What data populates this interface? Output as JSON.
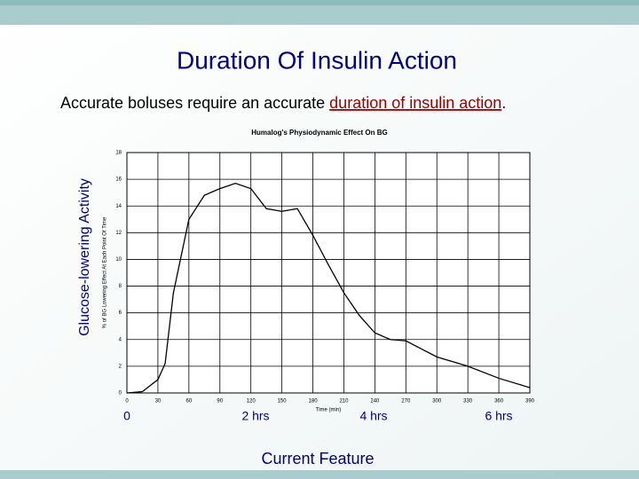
{
  "title": "Duration Of Insulin Action",
  "subtitle": {
    "before": "Accurate boluses require an accurate ",
    "link": "duration of insulin action",
    "after": "."
  },
  "side_label": "Glucose-lowering Activity",
  "time_labels": [
    "0",
    "2 hrs",
    "4 hrs",
    "6 hrs"
  ],
  "footer": "Current Feature",
  "chart_data": {
    "type": "line",
    "title": "Humalog's Physiodynamic Effect On BG",
    "xlabel": "Time (min)",
    "ylabel": "% of BG Lowering Effect At Each Point Of Time",
    "x": [
      0,
      15,
      30,
      37,
      45,
      60,
      75,
      90,
      105,
      120,
      135,
      150,
      165,
      180,
      195,
      210,
      225,
      240,
      255,
      270,
      285,
      300,
      330,
      360,
      390
    ],
    "series": [
      {
        "name": "Humalog",
        "color": "#000000",
        "values": [
          0,
          0.1,
          1,
          2.2,
          7.5,
          13,
          14.8,
          15.3,
          15.7,
          15.3,
          13.8,
          13.6,
          13.8,
          11.8,
          9.6,
          7.5,
          5.8,
          4.5,
          4.0,
          3.9,
          3.3,
          2.7,
          2.0,
          1.1,
          0.4
        ]
      }
    ],
    "xlim": [
      0,
      390
    ],
    "ylim": [
      0,
      18
    ],
    "xticks": [
      0,
      30,
      60,
      90,
      120,
      150,
      180,
      210,
      240,
      270,
      300,
      330,
      360,
      390
    ],
    "yticks": [
      0,
      2,
      4,
      6,
      8,
      10,
      12,
      14,
      16,
      18
    ],
    "grid": true
  }
}
